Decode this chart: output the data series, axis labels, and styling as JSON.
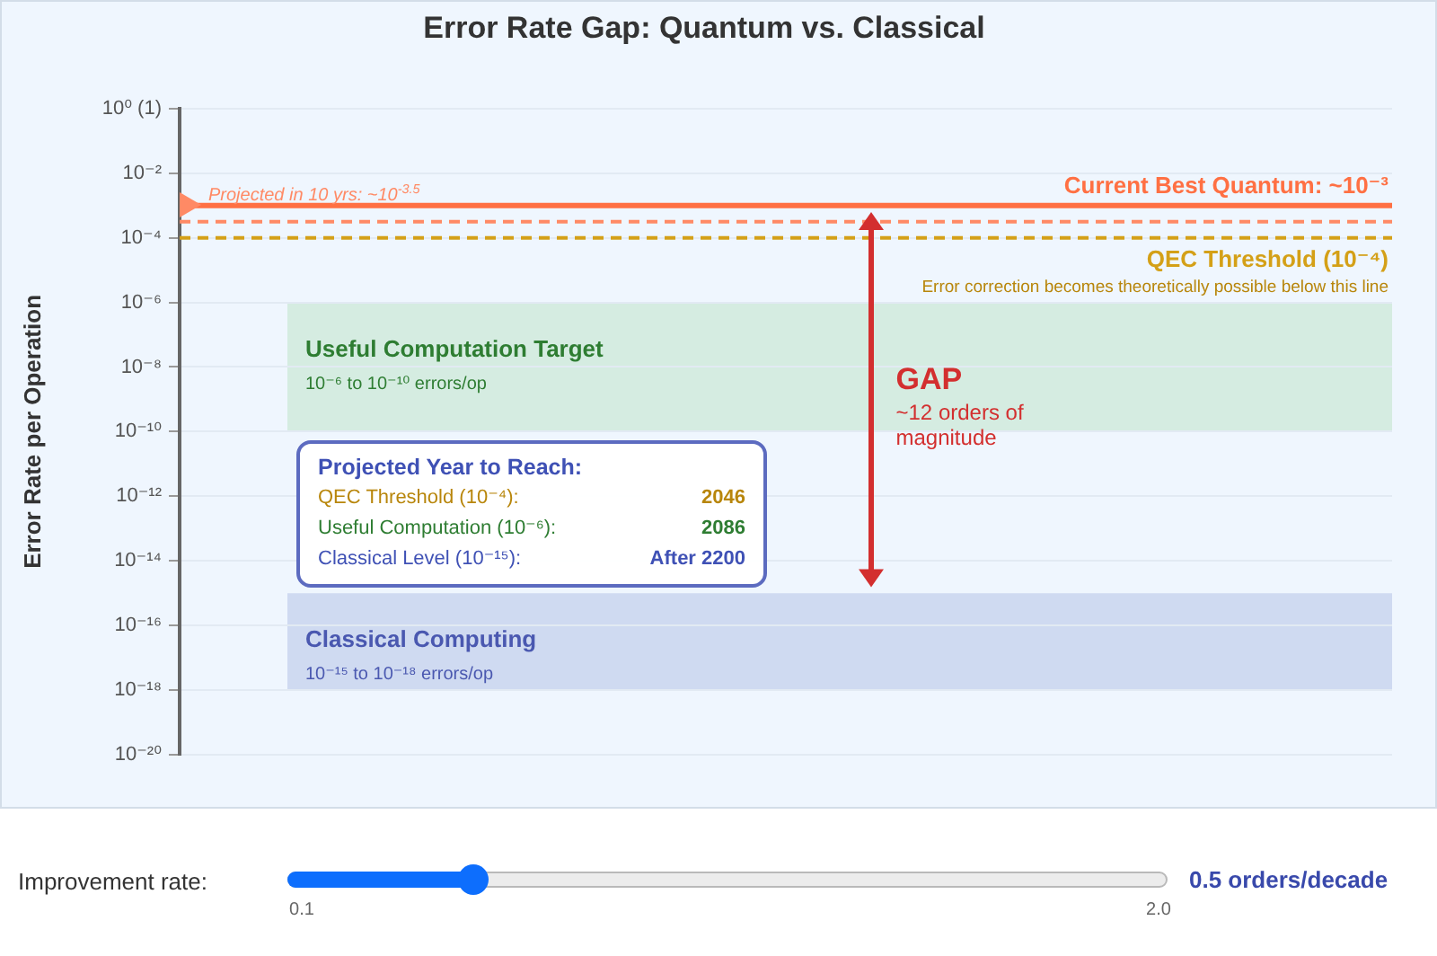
{
  "chart_data": {
    "type": "line",
    "title": "Error Rate Gap: Quantum vs. Classical",
    "ylabel": "Error Rate per Operation",
    "categories": [
      null
    ],
    "log": true,
    "ylim": [
      1e-20,
      1
    ],
    "yticks": [
      {
        "value": 1,
        "label": "10⁰ (1)"
      },
      {
        "value": 0.01,
        "label": "10⁻²"
      },
      {
        "value": 0.0001,
        "label": "10⁻⁴"
      },
      {
        "value": 1e-06,
        "label": "10⁻⁶"
      },
      {
        "value": 1e-08,
        "label": "10⁻⁸"
      },
      {
        "value": 1e-10,
        "label": "10⁻¹⁰"
      },
      {
        "value": 1e-12,
        "label": "10⁻¹²"
      },
      {
        "value": 1e-14,
        "label": "10⁻¹⁴"
      },
      {
        "value": 1e-16,
        "label": "10⁻¹⁶"
      },
      {
        "value": 1e-18,
        "label": "10⁻¹⁸"
      },
      {
        "value": 1e-20,
        "label": "10⁻²⁰"
      }
    ],
    "grid": "y",
    "tick_labels": "y",
    "ref_lines": [
      {
        "axis": "y",
        "value": 0.001,
        "label": "Current Best Quantum: ~10⁻³",
        "color": "#ff7043",
        "line_style": "solid"
      },
      {
        "axis": "y",
        "value": 0.000316,
        "label": "Projected in 10 yrs: ~10$^{-3.5}$",
        "color": "#ff8a65",
        "line_style": "dashed"
      },
      {
        "axis": "y",
        "value": 0.0001,
        "label": "QEC Threshold (10⁻⁴)",
        "color": "#d4a017",
        "line_style": "dashed"
      }
    ],
    "bands": [
      {
        "axis": "y",
        "from": 1e-10,
        "to": 1e-06,
        "label": "Useful Computation Target",
        "color": "#d5ece1"
      },
      {
        "axis": "y",
        "from": 1e-18,
        "to": 1e-15,
        "label": "Classical Computing",
        "color": "#cfdaf1"
      }
    ],
    "annotations": [
      "Error correction becomes theoretically possible below this line",
      "10⁻⁶ to 10⁻¹⁰ errors/op",
      "10⁻¹⁵ to 10⁻¹⁸ errors/op",
      "GAP",
      "~12 orders of magnitude",
      "Projected Year to Reach:",
      "QEC Threshold (10⁻⁴):",
      "2046",
      "Useful Computation (10⁻⁶):",
      "2086",
      "Classical Level (10⁻¹⁵):",
      "After 2200",
      "Improvement rate:",
      "0.1",
      "2.0",
      "0.5 orders/decade"
    ]
  }
}
